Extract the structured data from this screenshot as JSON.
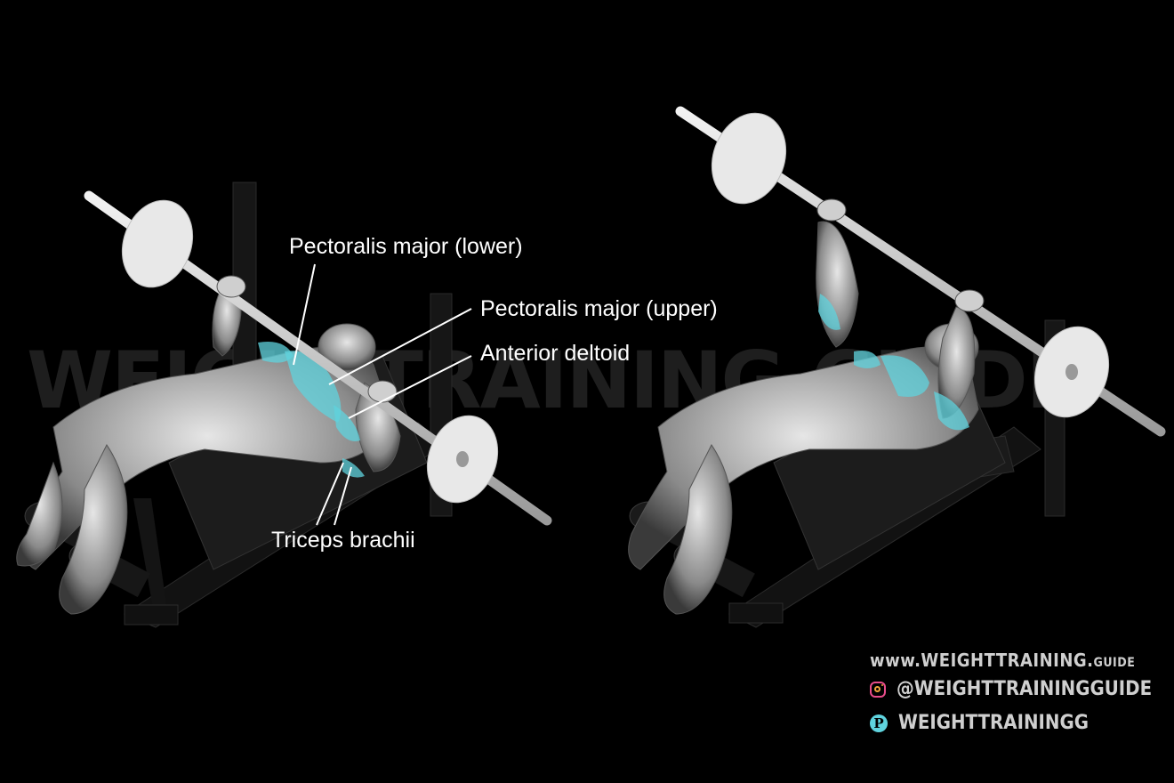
{
  "watermark": "WEIGHTTRAINING.GUIDE",
  "labels": {
    "pec_lower": "Pectoralis major (lower)",
    "pec_upper": "Pectoralis major (upper)",
    "anterior_deltoid": "Anterior deltoid",
    "triceps": "Triceps brachii"
  },
  "footer": {
    "site_main": "www.WEIGHTTRAINING.",
    "site_suffix": "GUIDE",
    "instagram": "@WEIGHTTRAININGGUIDE",
    "pinterest": "WEIGHTTRAININGG"
  },
  "colors": {
    "background": "#000000",
    "muscle_highlight": "#5fd3de",
    "figure": "#bdbdbd",
    "equipment": "#1a1a1a",
    "plate": "#e8e8e8"
  },
  "icons": {
    "instagram": "instagram-icon",
    "pinterest": "pinterest-icon"
  }
}
